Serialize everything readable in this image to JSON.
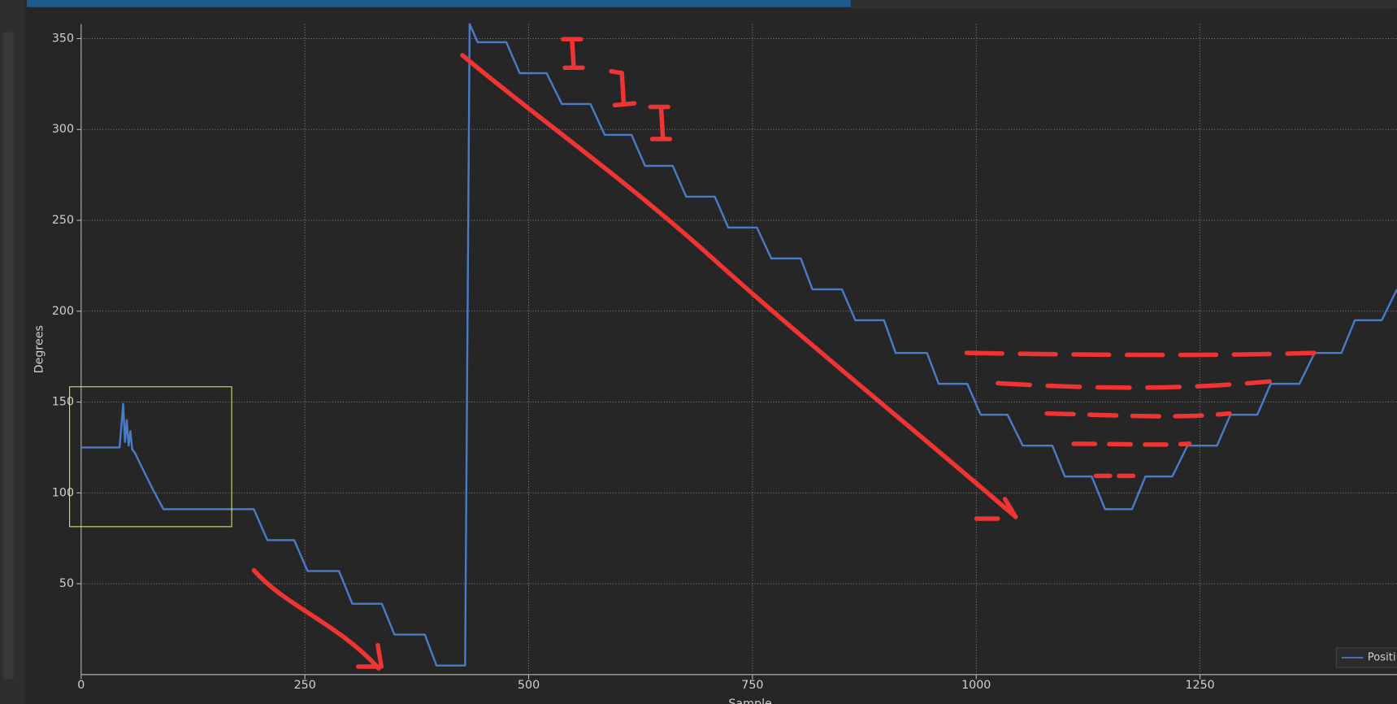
{
  "chart_data": {
    "type": "line",
    "xlabel": "Sample",
    "ylabel": "Degrees",
    "xlim": [
      0,
      1470
    ],
    "xticks": [
      0,
      250,
      500,
      750,
      1000,
      1250
    ],
    "ylim": [
      0,
      358
    ],
    "yticks": [
      50,
      100,
      150,
      200,
      250,
      300,
      350
    ],
    "grid": true,
    "legend": "lower right",
    "series": [
      {
        "name": "Positi",
        "color": "#4a7bc8",
        "x": [
          0,
          43,
          47,
          49,
          51,
          53,
          55,
          57,
          60,
          70,
          80,
          92,
          193,
          208,
          238,
          253,
          288,
          303,
          336,
          350,
          384,
          397,
          429,
          434,
          443,
          475,
          490,
          520,
          537,
          569,
          585,
          615,
          630,
          661,
          676,
          708,
          723,
          755,
          771,
          804,
          817,
          850,
          865,
          897,
          910,
          945,
          958,
          990,
          1005,
          1035,
          1052,
          1085,
          1099,
          1129,
          1144,
          1174,
          1189,
          1219,
          1236,
          1269,
          1284,
          1314,
          1329,
          1361,
          1378,
          1408,
          1423,
          1453,
          1470
        ],
        "values": [
          125,
          125,
          149,
          128,
          140,
          126,
          134,
          124,
          122,
          112,
          102,
          91,
          91,
          74,
          74,
          57,
          57,
          39,
          39,
          22,
          22,
          5,
          5,
          358,
          348,
          348,
          331,
          331,
          314,
          314,
          297,
          297,
          280,
          280,
          263,
          263,
          246,
          246,
          229,
          229,
          212,
          212,
          195,
          195,
          177,
          177,
          160,
          160,
          143,
          143,
          126,
          126,
          109,
          109,
          91,
          91,
          109,
          109,
          126,
          126,
          143,
          143,
          160,
          160,
          177,
          177,
          195,
          195,
          212
        ]
      }
    ]
  }
}
